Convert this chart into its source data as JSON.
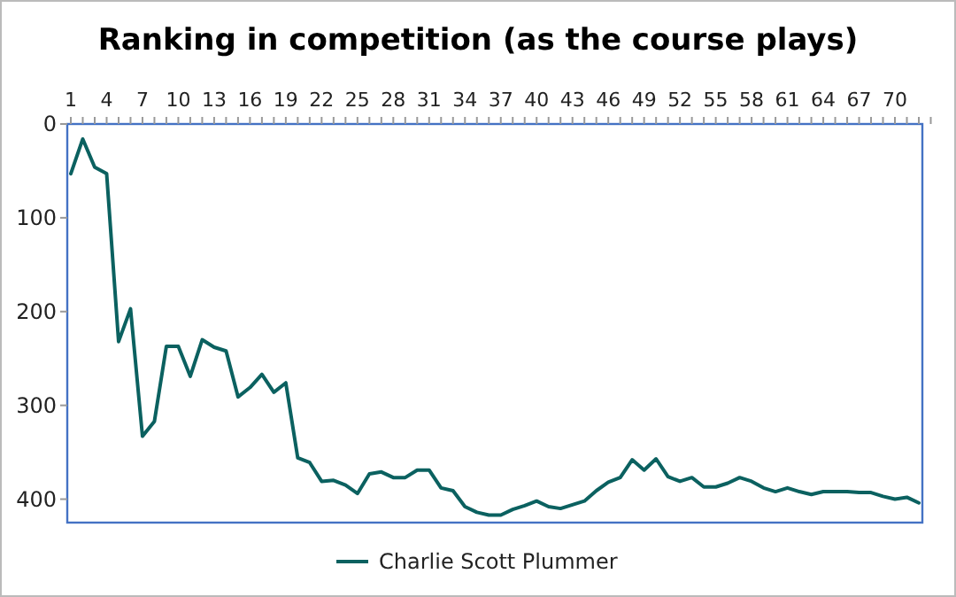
{
  "chart_data": {
    "type": "line",
    "title": "Ranking in competition (as the course plays)",
    "categories": [
      "1",
      null,
      null,
      "4",
      null,
      null,
      "7",
      null,
      null,
      "10",
      null,
      null,
      "13",
      null,
      null,
      "16",
      null,
      null,
      "19",
      null,
      null,
      "22",
      null,
      null,
      "25",
      null,
      null,
      "28",
      null,
      null,
      "31",
      null,
      null,
      "34",
      null,
      null,
      "37",
      null,
      null,
      "40",
      null,
      null,
      "43",
      null,
      null,
      "46",
      null,
      null,
      "49",
      null,
      null,
      "52",
      null,
      null,
      "55",
      null,
      null,
      "58",
      null,
      null,
      "61",
      null,
      null,
      "64",
      null,
      null,
      "67",
      null,
      null,
      "70",
      null,
      null
    ],
    "series": [
      {
        "name": "Charlie Scott Plummer",
        "color": "#0b6160",
        "values": [
          53,
          16,
          46,
          53,
          232,
          197,
          333,
          317,
          237,
          237,
          269,
          230,
          238,
          242,
          291,
          281,
          267,
          286,
          276,
          356,
          361,
          381,
          380,
          385,
          394,
          373,
          371,
          377,
          377,
          369,
          369,
          388,
          391,
          408,
          414,
          417,
          417,
          411,
          407,
          402,
          408,
          410,
          406,
          402,
          391,
          382,
          377,
          358,
          369,
          357,
          376,
          381,
          377,
          387,
          387,
          383,
          377,
          381,
          388,
          392,
          388,
          392,
          395,
          392,
          392,
          392,
          393,
          393,
          397,
          400,
          398,
          404
        ]
      }
    ],
    "ylim": [
      425,
      0
    ],
    "yticks": [
      0,
      100,
      200,
      300,
      400
    ],
    "grid": false,
    "legend": "bottom",
    "marker": "none",
    "line_style": "solid"
  }
}
